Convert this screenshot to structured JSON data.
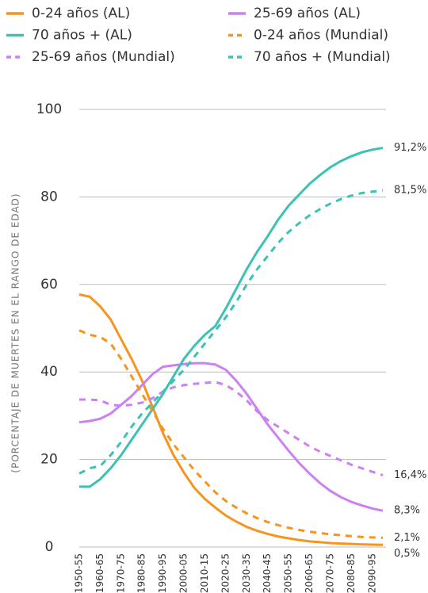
{
  "chart_data": {
    "type": "line",
    "y_label": "(PORCENTAJE DE MUERTES EN EL RANGO DE EDAD)",
    "categories": [
      "1950-55",
      null,
      "1960-65",
      null,
      "1970-75",
      null,
      "1980-85",
      null,
      "1990-95",
      null,
      "2000-05",
      null,
      "2010-15",
      null,
      "2020-25",
      null,
      "2030-35",
      null,
      "2040-45",
      null,
      "2050-55",
      null,
      "2060-65",
      null,
      "2070-75",
      null,
      "2080-85",
      null,
      "2090-95",
      null
    ],
    "ylim": [
      0,
      100
    ],
    "yticks": [
      0,
      20,
      40,
      60,
      80,
      100
    ],
    "grid": true,
    "series": [
      {
        "name": "0-24 años (AL)",
        "color": "#f7941d",
        "dash": false,
        "values": [
          57.7,
          57.2,
          55,
          52,
          47.5,
          43,
          38,
          32,
          26,
          21,
          17,
          13.5,
          11,
          9,
          7.2,
          5.8,
          4.6,
          3.7,
          3,
          2.4,
          2,
          1.6,
          1.3,
          1.1,
          0.9,
          0.8,
          0.7,
          0.6,
          0.55,
          0.5
        ],
        "value_labels": [
          null,
          null,
          null,
          null,
          null,
          null,
          null,
          null,
          null,
          null,
          null,
          null,
          null,
          null,
          null,
          null,
          null,
          null,
          null,
          null,
          null,
          null,
          null,
          null,
          null,
          null,
          null,
          null,
          null,
          "0,5%"
        ]
      },
      {
        "name": "25-69 años (AL)",
        "color": "#cc80f2",
        "dash": false,
        "values": [
          28.5,
          28.8,
          29.3,
          30.5,
          32.5,
          34.5,
          37,
          39.5,
          41.2,
          41.5,
          41.8,
          42,
          42,
          41.7,
          40.5,
          38,
          35,
          31.5,
          28,
          25,
          22,
          19.2,
          16.8,
          14.6,
          12.8,
          11.4,
          10.3,
          9.5,
          8.8,
          8.3
        ],
        "value_labels": [
          null,
          null,
          null,
          null,
          null,
          null,
          null,
          null,
          null,
          null,
          null,
          null,
          null,
          null,
          null,
          null,
          null,
          null,
          null,
          null,
          null,
          null,
          null,
          null,
          null,
          null,
          null,
          null,
          null,
          "8,3%"
        ]
      },
      {
        "name": "70 años + (AL)",
        "color": "#3cc2b4",
        "dash": false,
        "values": [
          13.8,
          13.8,
          15.5,
          18,
          21,
          24.5,
          28,
          31.5,
          35,
          39,
          43,
          46,
          48.5,
          50.5,
          54.5,
          59,
          63.5,
          67.5,
          71,
          74.8,
          78,
          80.5,
          83,
          85,
          86.8,
          88.2,
          89.3,
          90.2,
          90.8,
          91.2
        ],
        "value_labels": [
          null,
          null,
          null,
          null,
          null,
          null,
          null,
          null,
          null,
          null,
          null,
          null,
          null,
          null,
          null,
          null,
          null,
          null,
          null,
          null,
          null,
          null,
          null,
          null,
          null,
          null,
          null,
          null,
          null,
          "91,2%"
        ]
      },
      {
        "name": "0-24 años (Mundial)",
        "color": "#f7941d",
        "dash": true,
        "values": [
          49.5,
          48.5,
          48,
          46.5,
          43,
          39,
          35,
          31,
          27,
          23.5,
          20.5,
          17.5,
          15,
          12.5,
          10.5,
          9,
          7.7,
          6.6,
          5.7,
          5,
          4.4,
          3.9,
          3.5,
          3.2,
          2.9,
          2.7,
          2.5,
          2.3,
          2.2,
          2.1
        ],
        "value_labels": [
          null,
          null,
          null,
          null,
          null,
          null,
          null,
          null,
          null,
          null,
          null,
          null,
          null,
          null,
          null,
          null,
          null,
          null,
          null,
          null,
          null,
          null,
          null,
          null,
          null,
          null,
          null,
          null,
          null,
          "2,1%"
        ]
      },
      {
        "name": "25-69 años (Mundial)",
        "color": "#cc80f2",
        "dash": true,
        "values": [
          33.7,
          33.7,
          33.5,
          32.5,
          32.3,
          32.5,
          33,
          34,
          35.5,
          36.5,
          37,
          37.3,
          37.5,
          37.7,
          37,
          35.5,
          33.5,
          31,
          29,
          27.5,
          26,
          24.5,
          23,
          21.8,
          20.8,
          19.8,
          18.8,
          18,
          17.2,
          16.4
        ],
        "value_labels": [
          null,
          null,
          null,
          null,
          null,
          null,
          null,
          null,
          null,
          null,
          null,
          null,
          null,
          null,
          null,
          null,
          null,
          null,
          null,
          null,
          null,
          null,
          null,
          null,
          null,
          null,
          null,
          null,
          null,
          "16,4%"
        ]
      },
      {
        "name": "70 años + (Mundial)",
        "color": "#3cc2b4",
        "dash": true,
        "values": [
          16.8,
          18,
          18.5,
          21,
          24,
          27.5,
          30.5,
          33,
          35.5,
          38,
          40.5,
          43.5,
          46.5,
          49.5,
          52.5,
          56,
          60,
          63.5,
          66.5,
          69.5,
          72,
          74,
          75.8,
          77.2,
          78.5,
          79.5,
          80.3,
          80.9,
          81.2,
          81.5
        ],
        "value_labels": [
          null,
          null,
          null,
          null,
          null,
          null,
          null,
          null,
          null,
          null,
          null,
          null,
          null,
          null,
          null,
          null,
          null,
          null,
          null,
          null,
          null,
          null,
          null,
          null,
          null,
          null,
          null,
          null,
          null,
          "81,5%"
        ]
      }
    ]
  }
}
